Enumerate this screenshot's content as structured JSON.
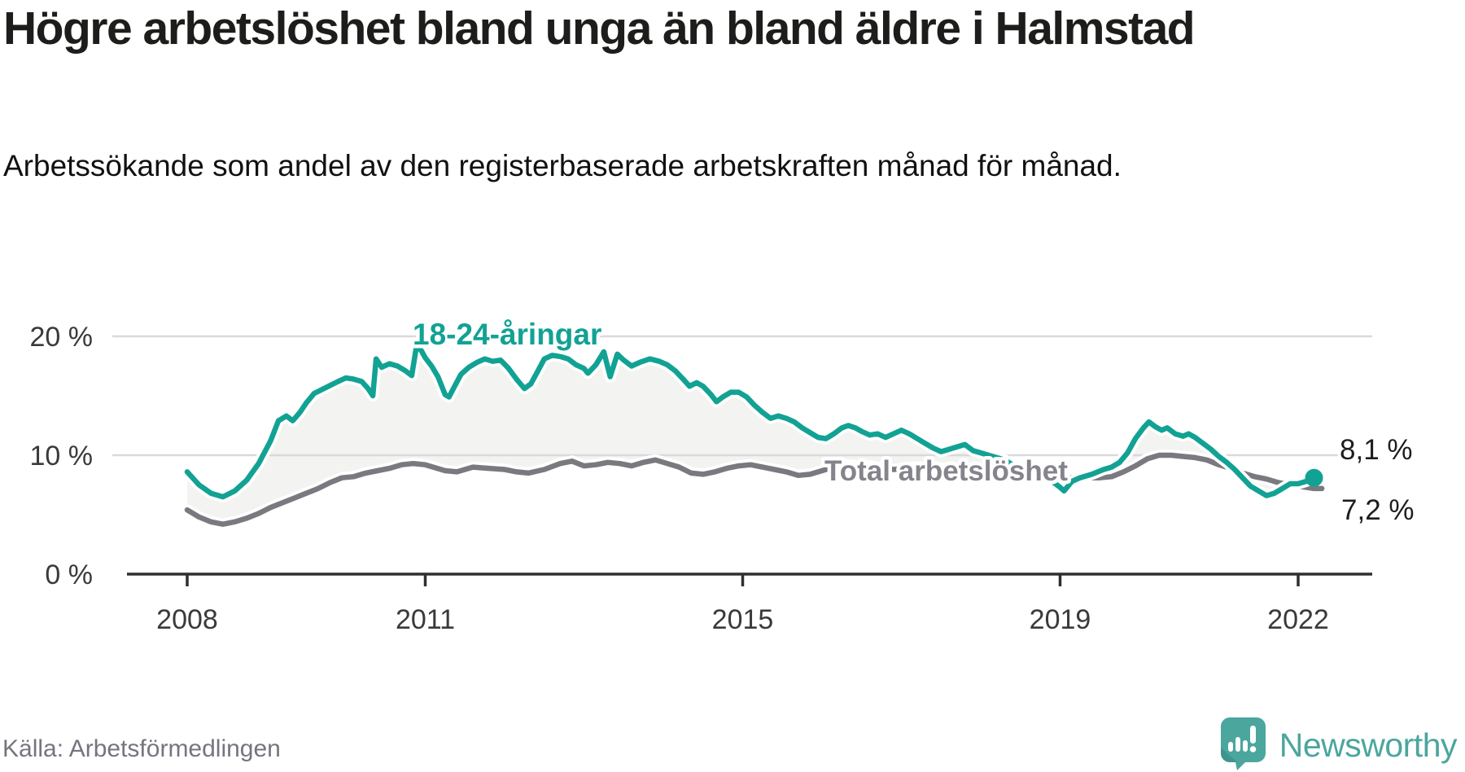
{
  "header": {
    "title": "Högre arbetslöshet bland unga än bland äldre i Halmstad",
    "subtitle": "Arbetssökande som andel av den registerbaserade arbetskraften månad för månad."
  },
  "footer": {
    "source": "Källa: Arbetsförmedlingen",
    "brand_name": "Newsworthy",
    "brand_color": "#4ba69e",
    "brand_icon": "speech-bubble-bar-chart-icon"
  },
  "chart_data": {
    "type": "line",
    "title": "",
    "xlabel": "",
    "ylabel": "",
    "x_axis": {
      "ticks": [
        2008,
        2011,
        2015,
        2019,
        2022
      ],
      "tick_labels": [
        "2008",
        "2011",
        "2015",
        "2019",
        "2022"
      ],
      "range": [
        2007.25,
        2022.95
      ]
    },
    "y_axis": {
      "ticks": [
        0,
        10,
        20
      ],
      "tick_labels": [
        "0 %",
        "10 %",
        "20 %"
      ],
      "range": [
        0,
        21.8
      ],
      "grid": true
    },
    "colors": {
      "axis": "#2f2f2f",
      "gridline": "#d9d9d9",
      "tick_text": "#3a3a3a",
      "end_label_text": "#1d1d1b",
      "fill_between": "#f3f3f1"
    },
    "series": [
      {
        "name": "Total arbetslöshet",
        "color": "#7b7980",
        "label_color": "#85838b",
        "end_label": "7,2 %",
        "end_dot": false,
        "points": [
          [
            2008.0,
            5.4
          ],
          [
            2008.15,
            4.8
          ],
          [
            2008.3,
            4.4
          ],
          [
            2008.45,
            4.2
          ],
          [
            2008.6,
            4.4
          ],
          [
            2008.75,
            4.7
          ],
          [
            2008.9,
            5.1
          ],
          [
            2009.05,
            5.6
          ],
          [
            2009.2,
            6.0
          ],
          [
            2009.35,
            6.4
          ],
          [
            2009.5,
            6.8
          ],
          [
            2009.65,
            7.2
          ],
          [
            2009.8,
            7.7
          ],
          [
            2009.95,
            8.1
          ],
          [
            2010.1,
            8.2
          ],
          [
            2010.25,
            8.5
          ],
          [
            2010.4,
            8.7
          ],
          [
            2010.55,
            8.9
          ],
          [
            2010.7,
            9.2
          ],
          [
            2010.85,
            9.3
          ],
          [
            2011.0,
            9.2
          ],
          [
            2011.1,
            9.0
          ],
          [
            2011.25,
            8.7
          ],
          [
            2011.4,
            8.6
          ],
          [
            2011.6,
            9.0
          ],
          [
            2011.8,
            8.9
          ],
          [
            2012.0,
            8.8
          ],
          [
            2012.15,
            8.6
          ],
          [
            2012.3,
            8.5
          ],
          [
            2012.5,
            8.8
          ],
          [
            2012.7,
            9.3
          ],
          [
            2012.85,
            9.5
          ],
          [
            2013.0,
            9.1
          ],
          [
            2013.15,
            9.2
          ],
          [
            2013.3,
            9.4
          ],
          [
            2013.45,
            9.3
          ],
          [
            2013.6,
            9.1
          ],
          [
            2013.75,
            9.4
          ],
          [
            2013.9,
            9.6
          ],
          [
            2014.05,
            9.3
          ],
          [
            2014.2,
            9.0
          ],
          [
            2014.35,
            8.5
          ],
          [
            2014.5,
            8.4
          ],
          [
            2014.65,
            8.6
          ],
          [
            2014.8,
            8.9
          ],
          [
            2014.95,
            9.1
          ],
          [
            2015.1,
            9.2
          ],
          [
            2015.25,
            9.0
          ],
          [
            2015.4,
            8.8
          ],
          [
            2015.55,
            8.6
          ],
          [
            2015.7,
            8.3
          ],
          [
            2015.85,
            8.4
          ],
          [
            2016.0,
            8.7
          ],
          [
            2016.15,
            9.0
          ],
          [
            2016.3,
            9.2
          ],
          [
            2016.45,
            9.1
          ],
          [
            2016.6,
            9.1
          ],
          [
            2016.75,
            8.9
          ],
          [
            2016.9,
            8.8
          ],
          [
            2017.05,
            8.9
          ],
          [
            2017.2,
            9.0
          ],
          [
            2017.35,
            9.0
          ],
          [
            2017.5,
            8.9
          ],
          [
            2017.7,
            8.8
          ],
          [
            2017.9,
            8.7
          ],
          [
            2018.1,
            8.6
          ],
          [
            2018.3,
            8.5
          ],
          [
            2018.5,
            8.4
          ],
          [
            2018.7,
            8.3
          ],
          [
            2018.9,
            8.2
          ],
          [
            2019.1,
            8.1
          ],
          [
            2019.3,
            8.1
          ],
          [
            2019.5,
            8.1
          ],
          [
            2019.65,
            8.2
          ],
          [
            2019.8,
            8.6
          ],
          [
            2019.95,
            9.1
          ],
          [
            2020.1,
            9.7
          ],
          [
            2020.25,
            10.0
          ],
          [
            2020.4,
            10.0
          ],
          [
            2020.55,
            9.9
          ],
          [
            2020.7,
            9.8
          ],
          [
            2020.85,
            9.6
          ],
          [
            2021.0,
            9.2
          ],
          [
            2021.15,
            8.9
          ],
          [
            2021.3,
            8.5
          ],
          [
            2021.45,
            8.2
          ],
          [
            2021.6,
            8.0
          ],
          [
            2021.75,
            7.7
          ],
          [
            2021.9,
            7.5
          ],
          [
            2022.0,
            7.4
          ],
          [
            2022.1,
            7.3
          ],
          [
            2022.2,
            7.2
          ],
          [
            2022.3,
            7.2
          ]
        ]
      },
      {
        "name": "18-24-åringar",
        "color": "#12a294",
        "label_color": "#12a294",
        "end_label": "8,1 %",
        "end_dot": true,
        "points": [
          [
            2008.0,
            8.6
          ],
          [
            2008.15,
            7.5
          ],
          [
            2008.3,
            6.8
          ],
          [
            2008.45,
            6.5
          ],
          [
            2008.6,
            7.0
          ],
          [
            2008.75,
            7.9
          ],
          [
            2008.9,
            9.3
          ],
          [
            2009.05,
            11.2
          ],
          [
            2009.15,
            12.9
          ],
          [
            2009.25,
            13.3
          ],
          [
            2009.33,
            12.9
          ],
          [
            2009.42,
            13.6
          ],
          [
            2009.5,
            14.4
          ],
          [
            2009.6,
            15.2
          ],
          [
            2009.75,
            15.7
          ],
          [
            2009.9,
            16.2
          ],
          [
            2010.0,
            16.5
          ],
          [
            2010.1,
            16.4
          ],
          [
            2010.2,
            16.2
          ],
          [
            2010.28,
            15.6
          ],
          [
            2010.34,
            15.0
          ],
          [
            2010.38,
            18.1
          ],
          [
            2010.45,
            17.4
          ],
          [
            2010.55,
            17.7
          ],
          [
            2010.65,
            17.5
          ],
          [
            2010.75,
            17.1
          ],
          [
            2010.83,
            16.7
          ],
          [
            2010.89,
            19.2
          ],
          [
            2010.95,
            18.8
          ],
          [
            2011.0,
            18.2
          ],
          [
            2011.08,
            17.5
          ],
          [
            2011.16,
            16.6
          ],
          [
            2011.25,
            15.1
          ],
          [
            2011.3,
            14.9
          ],
          [
            2011.37,
            15.8
          ],
          [
            2011.45,
            16.8
          ],
          [
            2011.55,
            17.4
          ],
          [
            2011.65,
            17.8
          ],
          [
            2011.75,
            18.1
          ],
          [
            2011.85,
            17.9
          ],
          [
            2011.95,
            18.0
          ],
          [
            2012.05,
            17.3
          ],
          [
            2012.15,
            16.4
          ],
          [
            2012.25,
            15.6
          ],
          [
            2012.33,
            16.0
          ],
          [
            2012.42,
            17.1
          ],
          [
            2012.5,
            18.1
          ],
          [
            2012.6,
            18.4
          ],
          [
            2012.7,
            18.3
          ],
          [
            2012.8,
            18.1
          ],
          [
            2012.9,
            17.6
          ],
          [
            2013.0,
            17.3
          ],
          [
            2013.05,
            16.9
          ],
          [
            2013.15,
            17.6
          ],
          [
            2013.25,
            18.7
          ],
          [
            2013.33,
            16.6
          ],
          [
            2013.42,
            18.5
          ],
          [
            2013.5,
            18.0
          ],
          [
            2013.6,
            17.5
          ],
          [
            2013.7,
            17.8
          ],
          [
            2013.83,
            18.1
          ],
          [
            2013.95,
            17.9
          ],
          [
            2014.05,
            17.6
          ],
          [
            2014.15,
            17.1
          ],
          [
            2014.25,
            16.4
          ],
          [
            2014.33,
            15.8
          ],
          [
            2014.42,
            16.1
          ],
          [
            2014.5,
            15.8
          ],
          [
            2014.6,
            15.1
          ],
          [
            2014.67,
            14.5
          ],
          [
            2014.75,
            14.9
          ],
          [
            2014.85,
            15.3
          ],
          [
            2014.95,
            15.3
          ],
          [
            2015.05,
            14.9
          ],
          [
            2015.15,
            14.2
          ],
          [
            2015.25,
            13.6
          ],
          [
            2015.35,
            13.1
          ],
          [
            2015.45,
            13.3
          ],
          [
            2015.55,
            13.1
          ],
          [
            2015.65,
            12.8
          ],
          [
            2015.75,
            12.3
          ],
          [
            2015.85,
            11.9
          ],
          [
            2015.95,
            11.5
          ],
          [
            2016.05,
            11.4
          ],
          [
            2016.15,
            11.8
          ],
          [
            2016.25,
            12.3
          ],
          [
            2016.33,
            12.5
          ],
          [
            2016.42,
            12.3
          ],
          [
            2016.5,
            12.0
          ],
          [
            2016.6,
            11.7
          ],
          [
            2016.7,
            11.8
          ],
          [
            2016.8,
            11.5
          ],
          [
            2016.9,
            11.8
          ],
          [
            2017.0,
            12.1
          ],
          [
            2017.1,
            11.8
          ],
          [
            2017.2,
            11.4
          ],
          [
            2017.3,
            11.0
          ],
          [
            2017.4,
            10.6
          ],
          [
            2017.5,
            10.3
          ],
          [
            2017.6,
            10.5
          ],
          [
            2017.7,
            10.7
          ],
          [
            2017.8,
            10.9
          ],
          [
            2017.9,
            10.4
          ],
          [
            2018.0,
            10.2
          ],
          [
            2018.1,
            10.0
          ],
          [
            2018.2,
            9.8
          ],
          [
            2018.3,
            9.6
          ],
          [
            2018.4,
            9.2
          ],
          [
            2018.5,
            9.0
          ],
          [
            2018.6,
            8.8
          ],
          [
            2018.7,
            8.6
          ],
          [
            2018.8,
            8.4
          ],
          [
            2018.9,
            7.8
          ],
          [
            2019.0,
            7.3
          ],
          [
            2019.05,
            7.0
          ],
          [
            2019.15,
            7.8
          ],
          [
            2019.25,
            8.1
          ],
          [
            2019.4,
            8.4
          ],
          [
            2019.55,
            8.8
          ],
          [
            2019.65,
            9.0
          ],
          [
            2019.75,
            9.4
          ],
          [
            2019.85,
            10.2
          ],
          [
            2019.95,
            11.4
          ],
          [
            2020.05,
            12.3
          ],
          [
            2020.12,
            12.8
          ],
          [
            2020.2,
            12.4
          ],
          [
            2020.28,
            12.1
          ],
          [
            2020.35,
            12.3
          ],
          [
            2020.45,
            11.8
          ],
          [
            2020.55,
            11.6
          ],
          [
            2020.62,
            11.8
          ],
          [
            2020.7,
            11.5
          ],
          [
            2020.8,
            11.0
          ],
          [
            2020.9,
            10.5
          ],
          [
            2021.0,
            9.9
          ],
          [
            2021.1,
            9.4
          ],
          [
            2021.2,
            8.8
          ],
          [
            2021.3,
            8.1
          ],
          [
            2021.4,
            7.4
          ],
          [
            2021.5,
            7.0
          ],
          [
            2021.6,
            6.6
          ],
          [
            2021.7,
            6.8
          ],
          [
            2021.8,
            7.2
          ],
          [
            2021.9,
            7.6
          ],
          [
            2022.0,
            7.6
          ],
          [
            2022.1,
            7.8
          ],
          [
            2022.2,
            8.1
          ]
        ]
      }
    ],
    "legend_position": "inline-labels",
    "annotations": [
      {
        "text": "18-24-åringar",
        "attached_to": "18-24-åringar"
      },
      {
        "text": "Total arbetslöshet",
        "attached_to": "Total arbetslöshet"
      }
    ]
  }
}
